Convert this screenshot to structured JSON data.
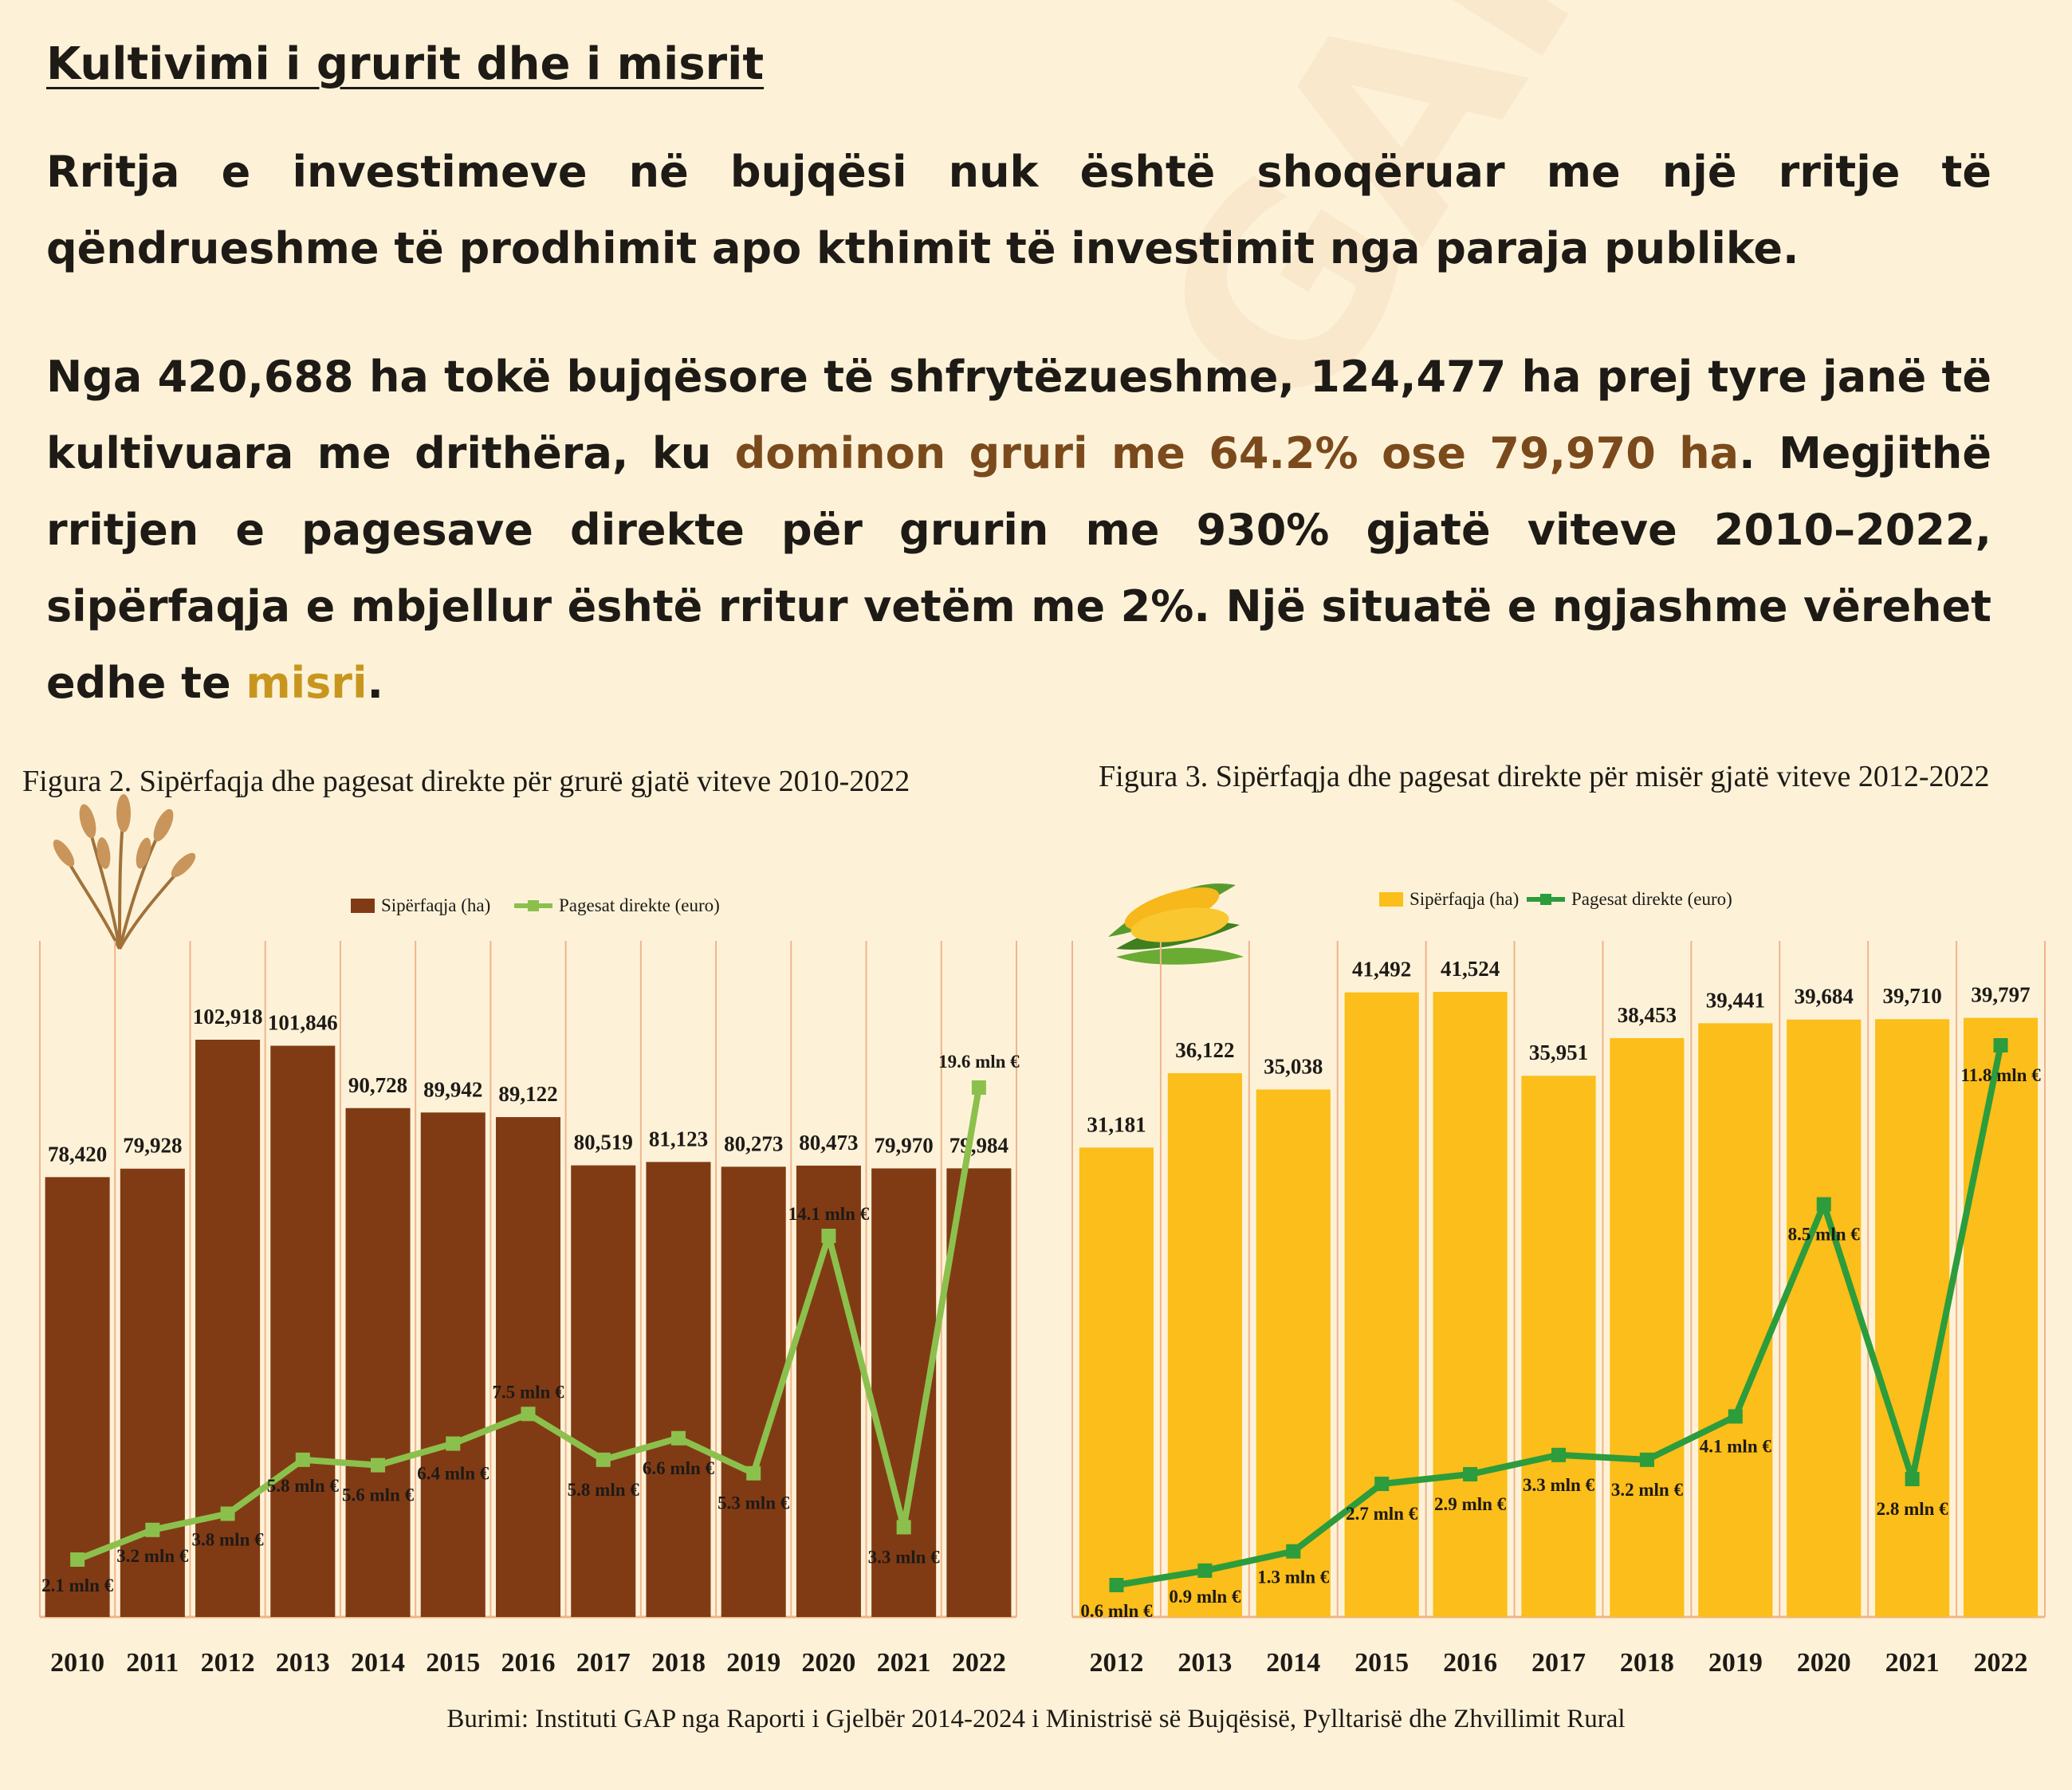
{
  "title": "Kultivimi i grurit dhe i misrit",
  "paragraph1": "Rritja e investimeve në bujqësi nuk është shoqëruar me një rritje të qëndrueshme të prodhimit apo kthimit të investimit nga paraja publike.",
  "paragraph2": {
    "part1": "Nga 420,688 ha tokë bujqësore të shfrytëzueshme, 124,477 ha prej tyre janë të kultivuara me drithëra, ku ",
    "highlight_wheat": "dominon gruri me 64.2% ose 79,970 ha",
    "part2": ". Megjithë rritjen e pagesave direkte për grurin me 930% gjatë viteve 2010–2022, sipërfaqja e mbjellur është rritur vetëm me 2%. Një situatë e ngjashme vërehet edhe te ",
    "highlight_corn": "misri",
    "part3": "."
  },
  "colors": {
    "background": "#fdf2d8",
    "wheat_bar": "#813b14",
    "wheat_line": "#8cc04d",
    "corn_bar": "#fbbe1a",
    "corn_line": "#2c9c3c",
    "highlight_wheat": "#7b4a1c",
    "highlight_corn": "#c8961e",
    "gridline": "#f0b48c"
  },
  "source": "Burimi: Instituti GAP nga Raporti i Gjelbër 2014-2024 i Ministrisë së Bujqësisë, Pylltarisë dhe Zhvillimit Rural",
  "watermark": "GAP",
  "chart_data": [
    {
      "type": "bar",
      "caption": "Figura 2. Sipërfaqja dhe pagesat direkte për grurë gjatë viteve 2010-2022",
      "icon": "wheat-icon",
      "categories": [
        "2010",
        "2011",
        "2012",
        "2013",
        "2014",
        "2015",
        "2016",
        "2017",
        "2018",
        "2019",
        "2020",
        "2021",
        "2022"
      ],
      "legend": [
        "Sipërfaqja (ha)",
        "Pagesat direkte (euro)"
      ],
      "legend_position": "top",
      "series": [
        {
          "name": "Sipërfaqja (ha)",
          "kind": "bar",
          "values": [
            78420,
            79928,
            102918,
            101846,
            90728,
            89942,
            89122,
            80519,
            81123,
            80273,
            80473,
            79970,
            79984
          ],
          "labels": [
            "78,420",
            "79,928",
            "102,918",
            "101,846",
            "90,728",
            "89,942",
            "89,122",
            "80,519",
            "81,123",
            "80,273",
            "80,473",
            "79,970",
            "79,984"
          ]
        },
        {
          "name": "Pagesat direkte (euro)",
          "kind": "line",
          "values": [
            2.1,
            3.2,
            3.8,
            5.8,
            5.6,
            6.4,
            7.5,
            5.8,
            6.6,
            5.3,
            14.1,
            3.3,
            19.6
          ],
          "labels": [
            "2.1 mln €",
            "3.2 mln €",
            "3.8 mln €",
            "5.8 mln €",
            "5.6 mln €",
            "6.4 mln €",
            "7.5 mln €",
            "5.8 mln €",
            "6.6 mln €",
            "5.3 mln €",
            "14.1 mln €",
            "3.3 mln €",
            "19.6 mln €"
          ]
        }
      ]
    },
    {
      "type": "bar",
      "caption": "Figura 3. Sipërfaqja dhe pagesat direkte për misër gjatë viteve 2012-2022",
      "icon": "corn-icon",
      "categories": [
        "2012",
        "2013",
        "2014",
        "2015",
        "2016",
        "2017",
        "2018",
        "2019",
        "2020",
        "2021",
        "2022"
      ],
      "legend": [
        "Sipërfaqja (ha)",
        "Pagesat direkte (euro)"
      ],
      "legend_position": "top",
      "series": [
        {
          "name": "Sipërfaqja (ha)",
          "kind": "bar",
          "values": [
            31181,
            36122,
            35038,
            41492,
            41524,
            35951,
            38453,
            39441,
            39684,
            39710,
            39797
          ],
          "labels": [
            "31,181",
            "36,122",
            "35,038",
            "41,492",
            "41,524",
            "35,951",
            "38,453",
            "39,441",
            "39,684",
            "39,710",
            "39,797"
          ]
        },
        {
          "name": "Pagesat direkte (euro)",
          "kind": "line",
          "values": [
            0.6,
            0.9,
            1.3,
            2.7,
            2.9,
            3.3,
            3.2,
            4.1,
            8.5,
            2.8,
            11.8
          ],
          "labels": [
            "0.6 mln €",
            "0.9 mln €",
            "1.3 mln €",
            "2.7 mln €",
            "2.9 mln €",
            "3.3 mln €",
            "3.2 mln €",
            "4.1 mln €",
            "8.5 mln €",
            "2.8 mln €",
            "11.8 mln €"
          ]
        }
      ]
    }
  ]
}
